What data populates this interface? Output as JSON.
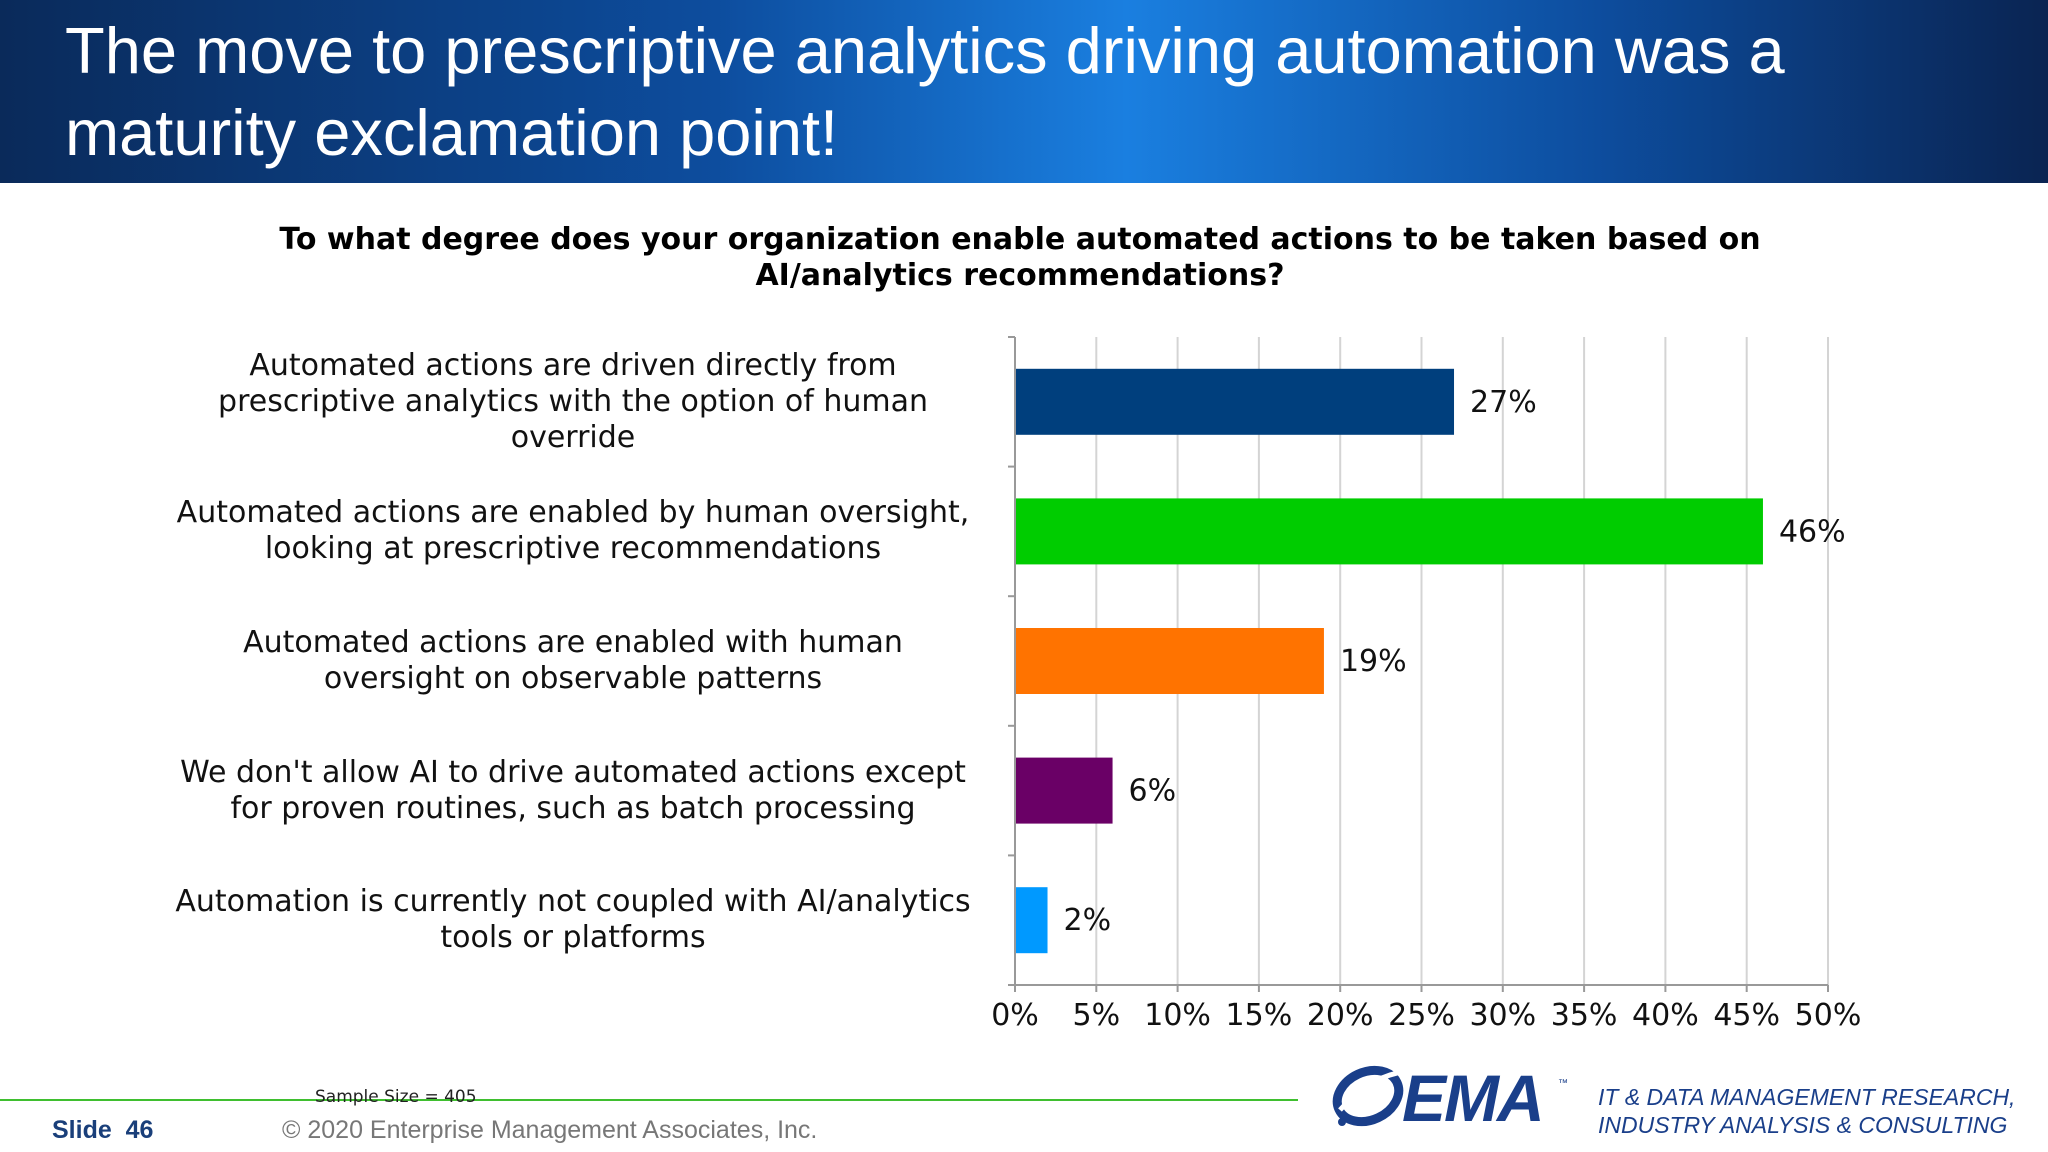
{
  "slide": {
    "title": "The move to prescriptive analytics driving automation was a maturity exclamation point!",
    "sample_size": "Sample Size = 405",
    "slide_label": "Slide",
    "slide_number": "46",
    "copyright": "© 2020 Enterprise Management Associates, Inc.",
    "logo_text": "EMA",
    "logo_tm": "™",
    "tagline_line1": "IT & DATA MANAGEMENT RESEARCH,",
    "tagline_line2": "INDUSTRY ANALYSIS & CONSULTING",
    "brand_color": "#1a3f8a",
    "accent_line_color": "#3fbf2f"
  },
  "chart_data": {
    "type": "bar",
    "orientation": "horizontal",
    "title": "To what degree does your organization enable automated actions to be taken based on AI/analytics recommendations?",
    "categories": [
      "Automated actions are driven directly from prescriptive analytics with the option of human override",
      "Automated actions are enabled by human oversight, looking at prescriptive recommendations",
      "Automated actions are enabled with human oversight on observable patterns",
      "We don't allow AI to drive automated actions except for proven routines, such as batch processing",
      "Automation is currently not coupled with AI/analytics tools or platforms"
    ],
    "category_lines": [
      [
        "Automated actions are driven directly from",
        "prescriptive analytics with the option of human",
        "override"
      ],
      [
        "Automated actions are enabled by human oversight,",
        "looking at prescriptive recommendations"
      ],
      [
        "Automated actions are enabled with human",
        "oversight on observable patterns"
      ],
      [
        "We don't allow AI to drive automated actions except",
        "for proven routines, such as batch processing"
      ],
      [
        "Automation is currently not coupled with AI/analytics",
        "tools or platforms"
      ]
    ],
    "values": [
      27,
      46,
      19,
      6,
      2
    ],
    "value_labels": [
      "27%",
      "46%",
      "19%",
      "6%",
      "2%"
    ],
    "colors": [
      "#003f7d",
      "#00cc00",
      "#ff7300",
      "#6a0066",
      "#0099ff"
    ],
    "xlim": [
      0,
      50
    ],
    "xticks": [
      0,
      5,
      10,
      15,
      20,
      25,
      30,
      35,
      40,
      45,
      50
    ],
    "xtick_labels": [
      "0%",
      "5%",
      "10%",
      "15%",
      "20%",
      "25%",
      "30%",
      "35%",
      "40%",
      "45%",
      "50%"
    ],
    "xlabel": "",
    "ylabel": "",
    "grid": true,
    "legend": "none"
  }
}
